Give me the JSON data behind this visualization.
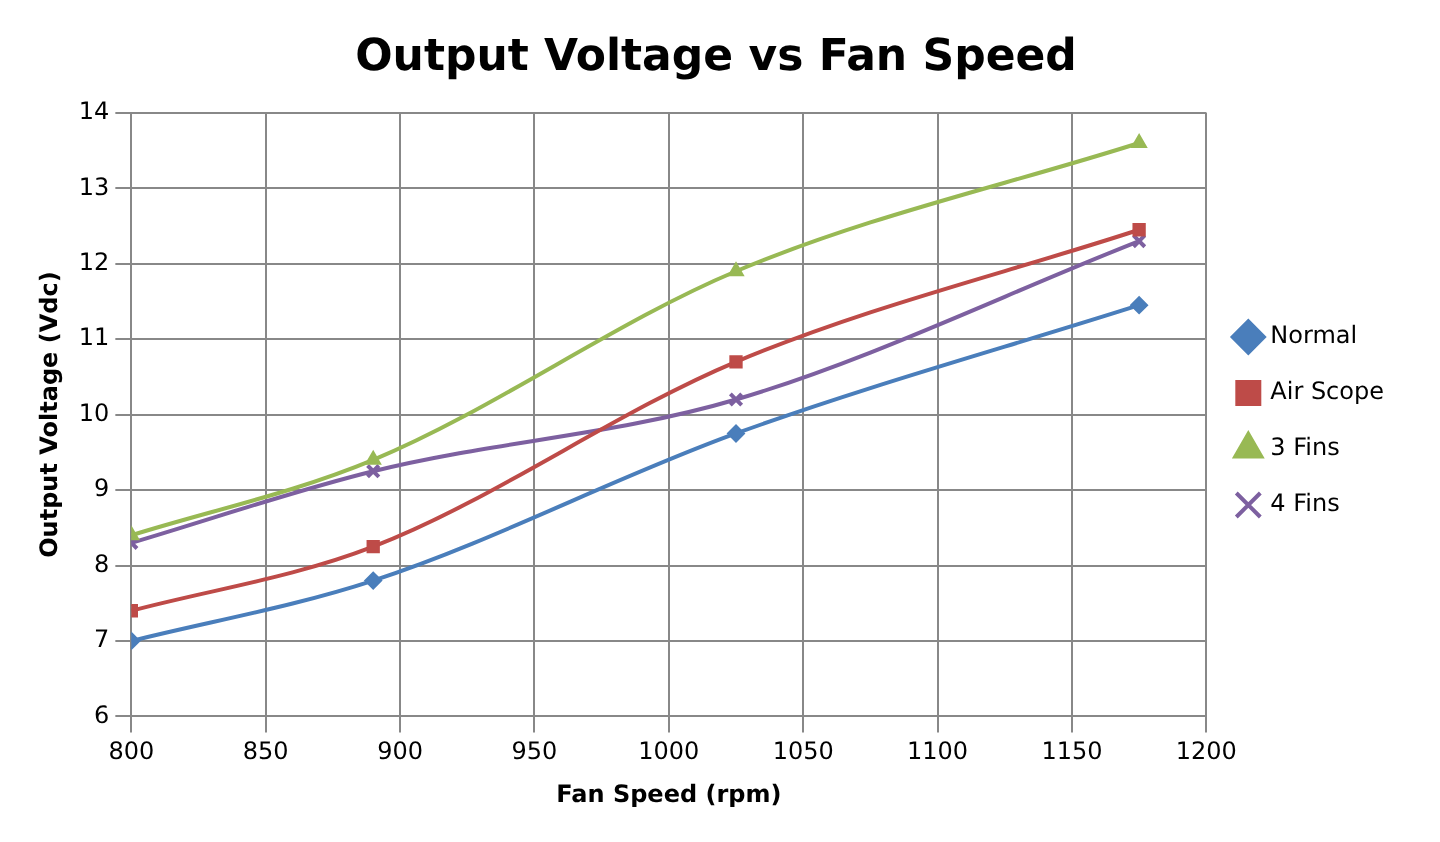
{
  "chart_data": {
    "type": "line",
    "title": "Output Voltage vs Fan Speed",
    "xlabel": "Fan Speed (rpm)",
    "ylabel": "Output Voltage (Vdc)",
    "x": [
      800,
      890,
      1025,
      1175
    ],
    "series": [
      {
        "name": "Normal",
        "color": "#4a7ebb",
        "marker": "diamond",
        "values": [
          7.0,
          7.8,
          9.75,
          11.45
        ]
      },
      {
        "name": "Air Scope",
        "color": "#be4b48",
        "marker": "square",
        "values": [
          7.4,
          8.25,
          10.7,
          12.45
        ]
      },
      {
        "name": "3 Fins",
        "color": "#98b954",
        "marker": "triangle",
        "values": [
          8.4,
          9.4,
          11.9,
          13.6
        ]
      },
      {
        "name": "4 Fins",
        "color": "#7d60a0",
        "marker": "cross",
        "values": [
          8.3,
          9.25,
          10.2,
          12.3
        ]
      }
    ],
    "xlim": [
      800,
      1200
    ],
    "xticks": [
      800,
      850,
      900,
      950,
      1000,
      1050,
      1100,
      1150,
      1200
    ],
    "ylim": [
      6,
      14
    ],
    "yticks": [
      6,
      7,
      8,
      9,
      10,
      11,
      12,
      13,
      14
    ],
    "grid": true,
    "legend": "right"
  }
}
